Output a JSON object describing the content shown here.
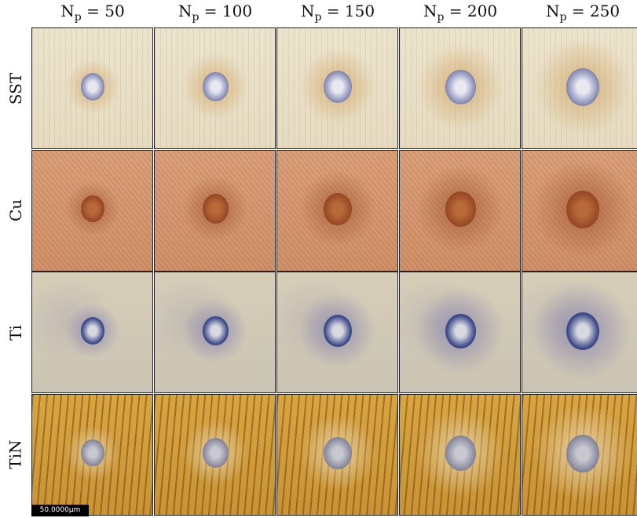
{
  "columns": [
    {
      "variable": "N",
      "subscript": "p",
      "text": "= 50"
    },
    {
      "variable": "N",
      "subscript": "p",
      "text": "= 100"
    },
    {
      "variable": "N",
      "subscript": "p",
      "text": "= 150"
    },
    {
      "variable": "N",
      "subscript": "p",
      "text": "= 200"
    },
    {
      "variable": "N",
      "subscript": "p",
      "text": "= 250"
    }
  ],
  "rows": [
    "SST",
    "Cu",
    "Ti",
    "TiN"
  ],
  "scale_bar": "50.0000μm"
}
